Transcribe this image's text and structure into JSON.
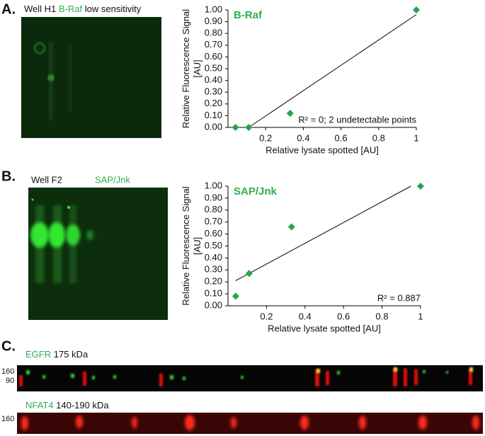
{
  "panels": {
    "a": {
      "letter": "A.",
      "well": "Well H1",
      "protein": "B-Raf",
      "note": "low sensitivity"
    },
    "b": {
      "letter": "B.",
      "well": "Well F2",
      "protein": "SAP/Jnk"
    },
    "c": {
      "letter": "C.",
      "blots": [
        {
          "protein": "EGFR",
          "size": "175 kDa",
          "markers": [
            "160",
            "90"
          ]
        },
        {
          "protein": "NFAT4",
          "size": "140-190 kDa",
          "markers": [
            "160"
          ]
        }
      ]
    }
  },
  "chart_data": [
    {
      "type": "scatter",
      "title": "B-Raf",
      "x_label": "Relative lysate spotted [AU]",
      "y_label": "Relative Fluorescence Signal [AU]",
      "annotation": "R² = 0; 2 undetectable points",
      "series": [
        {
          "color": "#21a64b",
          "x": [
            0.04,
            0.11,
            0.33,
            1.0
          ],
          "values": [
            0.0,
            0.0,
            0.12,
            1.0
          ]
        }
      ],
      "trendline": {
        "x": [
          0.11,
          1.0
        ],
        "y": [
          0.0,
          0.96
        ]
      },
      "xlim": [
        0,
        1
      ],
      "ylim": [
        0,
        1
      ],
      "xticks": [
        0.2,
        0.4,
        0.6,
        0.8,
        1
      ],
      "yticks": [
        {
          "value": 0,
          "label": "0.00"
        },
        {
          "value": 0.1,
          "label": "0.10"
        },
        {
          "value": 0.2,
          "label": "0.20"
        },
        {
          "value": 0.3,
          "label": "0.30"
        },
        {
          "value": 0.4,
          "label": "0.40"
        },
        {
          "value": 0.5,
          "label": "0.50"
        },
        {
          "value": 0.6,
          "label": "0.60"
        },
        {
          "value": 0.7,
          "label": "0.70"
        },
        {
          "value": 0.8,
          "label": "0.80"
        },
        {
          "value": 0.9,
          "label": "0.90"
        },
        {
          "value": 1,
          "label": "1.00"
        }
      ]
    },
    {
      "type": "scatter",
      "title": "SAP/Jnk",
      "x_label": "Relative lysate spotted [AU]",
      "y_label": "Relative Fluorescence Signal [AU]",
      "annotation": "R² = 0.887",
      "series": [
        {
          "color": "#21a64b",
          "x": [
            0.04,
            0.11,
            0.33,
            1.0
          ],
          "values": [
            0.08,
            0.27,
            0.66,
            1.0
          ]
        }
      ],
      "trendline": {
        "x": [
          0.04,
          0.95
        ],
        "y": [
          0.21,
          1.0
        ]
      },
      "xlim": [
        0,
        1
      ],
      "ylim": [
        0,
        1
      ],
      "xticks": [
        0.2,
        0.4,
        0.6,
        0.8,
        1
      ],
      "yticks": [
        {
          "value": 0,
          "label": "0.00"
        },
        {
          "value": 0.1,
          "label": "0.10"
        },
        {
          "value": 0.2,
          "label": "0.20"
        },
        {
          "value": 0.3,
          "label": "0.30"
        },
        {
          "value": 0.4,
          "label": "0.40"
        },
        {
          "value": 0.5,
          "label": "0.50"
        },
        {
          "value": 0.6,
          "label": "0.60"
        },
        {
          "value": 0.7,
          "label": "0.70"
        },
        {
          "value": 0.8,
          "label": "0.80"
        },
        {
          "value": 0.9,
          "label": "0.90"
        },
        {
          "value": 1,
          "label": "1.00"
        }
      ]
    }
  ]
}
